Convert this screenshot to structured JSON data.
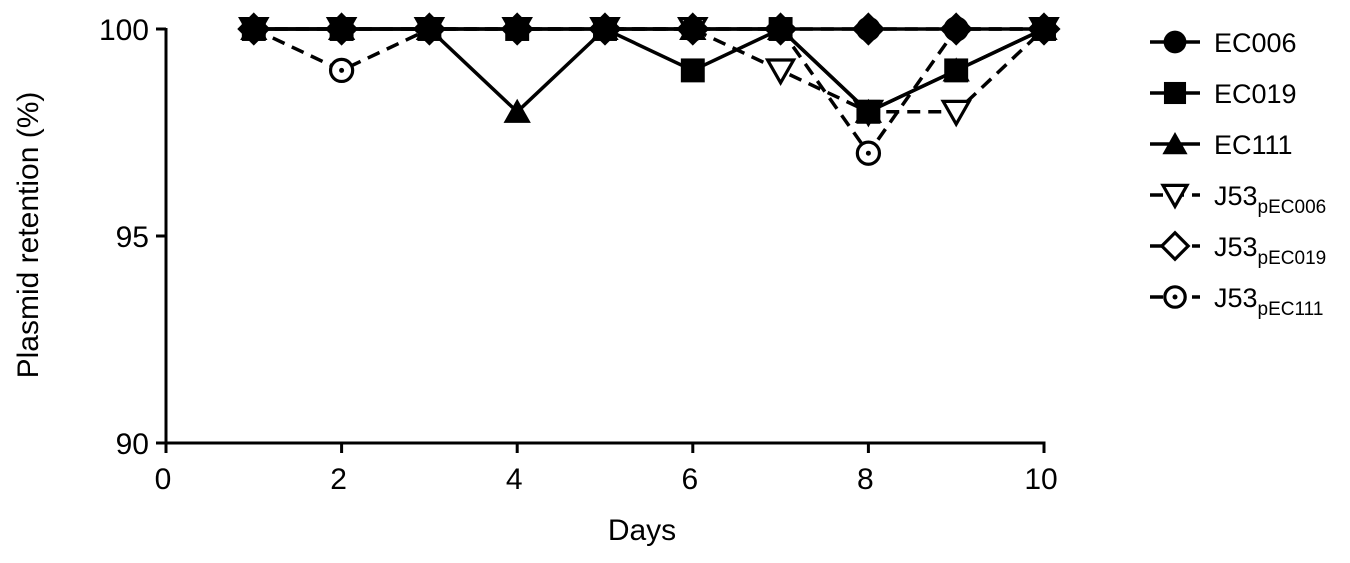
{
  "chart_data": {
    "type": "line",
    "xlabel": "Days",
    "ylabel": "Plasmid retention (%)",
    "xlim": [
      0,
      10
    ],
    "ylim": [
      90,
      100
    ],
    "xticks": [
      0,
      2,
      4,
      6,
      8,
      10
    ],
    "yticks": [
      90,
      95,
      100
    ],
    "grid": false,
    "legend_position": "right",
    "x": [
      1,
      2,
      3,
      4,
      5,
      6,
      7,
      8,
      9,
      10
    ],
    "series": [
      {
        "name": "EC006",
        "base": "EC006",
        "sub": "",
        "marker": "circle-filled",
        "line": "solid",
        "values": [
          100,
          100,
          100,
          100,
          100,
          100,
          100,
          100,
          100,
          100
        ]
      },
      {
        "name": "EC019",
        "base": "EC019",
        "sub": "",
        "marker": "square-filled",
        "line": "solid",
        "values": [
          100,
          100,
          100,
          100,
          100,
          99,
          100,
          98,
          99,
          100
        ]
      },
      {
        "name": "EC111",
        "base": "EC111",
        "sub": "",
        "marker": "triangle-filled",
        "line": "solid",
        "values": [
          100,
          100,
          100,
          98,
          100,
          100,
          100,
          98,
          99,
          100
        ]
      },
      {
        "name": "J53pEC006",
        "base": "J53",
        "sub": "pEC006",
        "marker": "triangle-down-open",
        "line": "dashed",
        "values": [
          100,
          100,
          100,
          100,
          100,
          100,
          99,
          98,
          98,
          100
        ]
      },
      {
        "name": "J53pEC019",
        "base": "J53",
        "sub": "pEC019",
        "marker": "diamond-open",
        "line": "dashed",
        "values": [
          100,
          100,
          100,
          100,
          100,
          100,
          100,
          100,
          100,
          100
        ]
      },
      {
        "name": "J53pEC111",
        "base": "J53",
        "sub": "pEC111",
        "marker": "circle-open",
        "line": "dashed",
        "values": [
          100,
          99,
          100,
          100,
          100,
          100,
          100,
          97,
          100,
          100
        ]
      }
    ]
  }
}
